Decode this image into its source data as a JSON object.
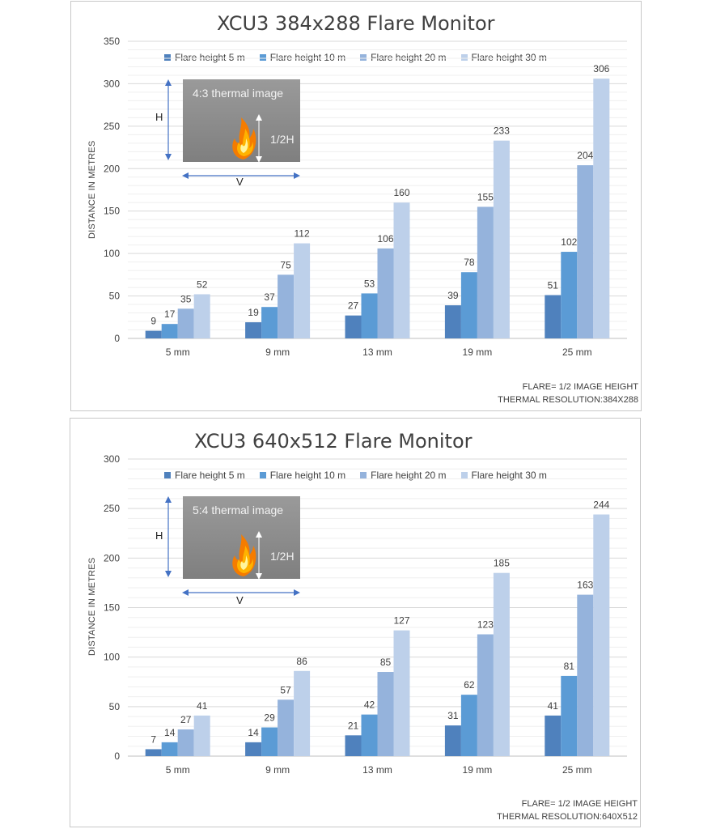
{
  "charts": [
    {
      "title": "XCU3 384x288 Flare Monitor",
      "ylabel": "DISTANCE IN METRES",
      "inset": {
        "caption": "4:3 thermal image",
        "half": "1/2H",
        "h": "H",
        "v": "V"
      },
      "notes": [
        "FLARE= 1/2 IMAGE HEIGHT",
        "THERMAL RESOLUTION:384X288"
      ]
    },
    {
      "title": "XCU3 640x512 Flare Monitor",
      "ylabel": "DISTANCE IN METRES",
      "inset": {
        "caption": "5:4 thermal image",
        "half": "1/2H",
        "h": "H",
        "v": "V"
      },
      "notes": [
        "FLARE= 1/2 IMAGE HEIGHT",
        "THERMAL RESOLUTION:640X512"
      ]
    }
  ],
  "chart_data": [
    {
      "type": "bar",
      "title": "XCU3 384x288 Flare Monitor",
      "xlabel": "",
      "ylabel": "DISTANCE IN METRES",
      "categories": [
        "5 mm",
        "9 mm",
        "13 mm",
        "19 mm",
        "25 mm"
      ],
      "yticks": [
        0,
        50,
        100,
        150,
        200,
        250,
        300,
        350
      ],
      "ylim": [
        0,
        350
      ],
      "grid": true,
      "legend": "top",
      "series": [
        {
          "name": "Flare height 5 m",
          "color": "#4f81bd",
          "values": [
            9,
            19,
            27,
            39,
            51
          ]
        },
        {
          "name": "Flare height 10 m",
          "color": "#5b9bd5",
          "values": [
            17,
            37,
            53,
            78,
            102
          ]
        },
        {
          "name": "Flare height 20 m",
          "color": "#95b3dc",
          "values": [
            35,
            75,
            106,
            155,
            204
          ]
        },
        {
          "name": "Flare height 30 m",
          "color": "#bdd0ea",
          "values": [
            52,
            112,
            160,
            233,
            306
          ]
        }
      ]
    },
    {
      "type": "bar",
      "title": "XCU3 640x512 Flare Monitor",
      "xlabel": "",
      "ylabel": "DISTANCE IN METRES",
      "categories": [
        "5 mm",
        "9 mm",
        "13 mm",
        "19 mm",
        "25 mm"
      ],
      "yticks": [
        0,
        50,
        100,
        150,
        200,
        250,
        300
      ],
      "ylim": [
        0,
        300
      ],
      "grid": true,
      "legend": "top",
      "series": [
        {
          "name": "Flare height 5 m",
          "color": "#4f81bd",
          "values": [
            7,
            14,
            21,
            31,
            41
          ]
        },
        {
          "name": "Flare height 10 m",
          "color": "#5b9bd5",
          "values": [
            14,
            29,
            42,
            62,
            81
          ]
        },
        {
          "name": "Flare height 20 m",
          "color": "#95b3dc",
          "values": [
            27,
            57,
            85,
            123,
            163
          ]
        },
        {
          "name": "Flare height 30 m",
          "color": "#bdd0ea",
          "values": [
            41,
            86,
            127,
            185,
            244
          ]
        }
      ]
    }
  ]
}
